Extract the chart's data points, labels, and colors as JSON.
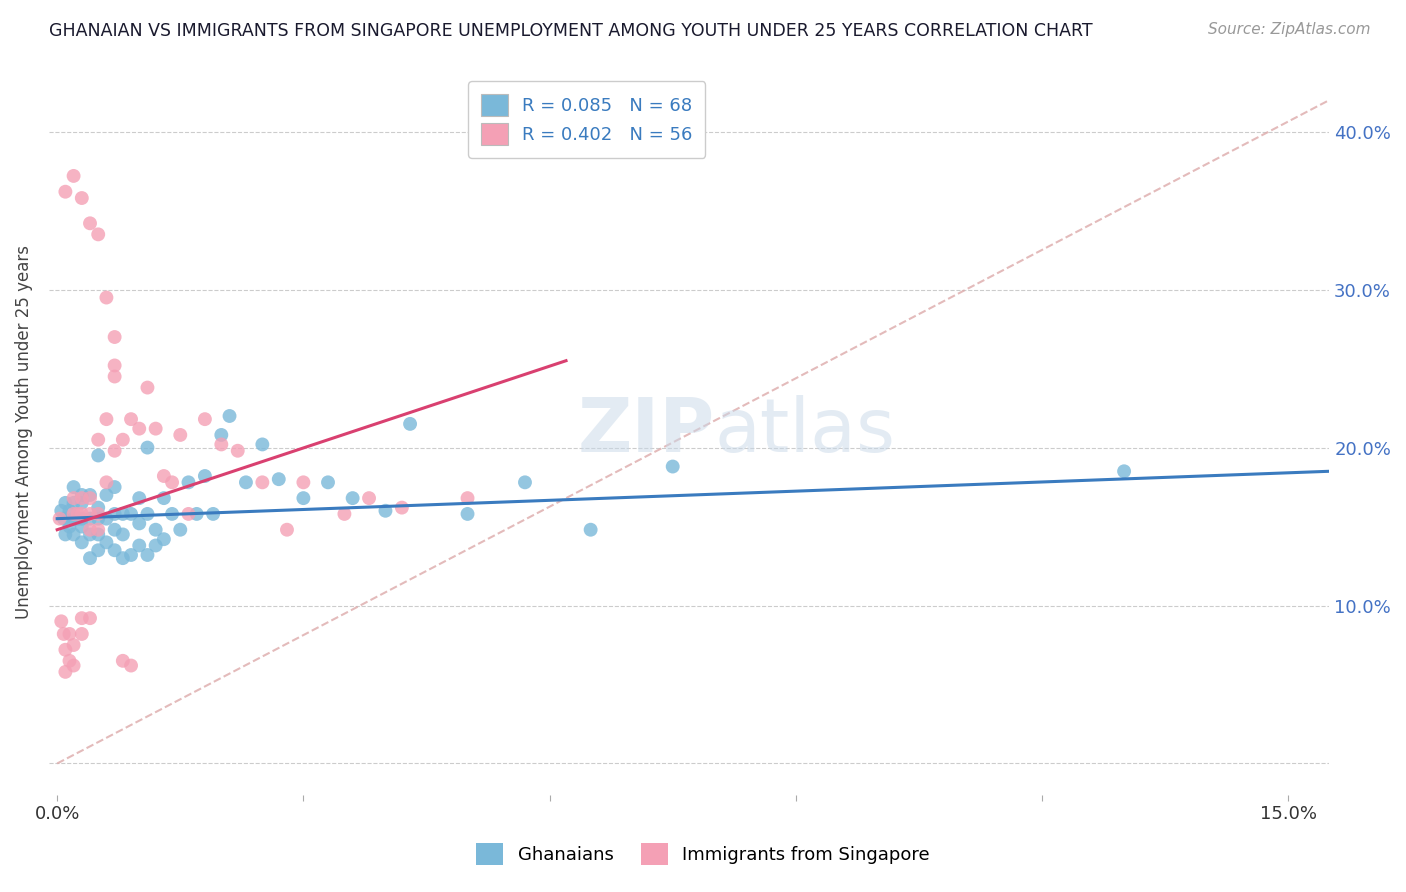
{
  "title": "GHANAIAN VS IMMIGRANTS FROM SINGAPORE UNEMPLOYMENT AMONG YOUTH UNDER 25 YEARS CORRELATION CHART",
  "source": "Source: ZipAtlas.com",
  "ylabel": "Unemployment Among Youth under 25 years",
  "y_ticks": [
    0.0,
    0.1,
    0.2,
    0.3,
    0.4
  ],
  "y_tick_labels": [
    "",
    "10.0%",
    "20.0%",
    "30.0%",
    "40.0%"
  ],
  "x_tick_positions": [
    0.0,
    0.03,
    0.06,
    0.09,
    0.12,
    0.15
  ],
  "x_tick_labels": [
    "0.0%",
    "",
    "",
    "",
    "",
    "15.0%"
  ],
  "xlim": [
    -0.001,
    0.155
  ],
  "ylim": [
    -0.02,
    0.44
  ],
  "watermark": "ZIPatlas",
  "legend_label_1": "R = 0.085   N = 68",
  "legend_label_2": "R = 0.402   N = 56",
  "legend_bottom_1": "Ghanaians",
  "legend_bottom_2": "Immigrants from Singapore",
  "color_blue": "#7ab8d9",
  "color_pink": "#f4a0b5",
  "line_color_blue": "#3a7bbf",
  "line_color_pink": "#d94070",
  "line_color_diag": "#ddaaaa",
  "blue_line_x": [
    0.0,
    0.155
  ],
  "blue_line_y": [
    0.155,
    0.185
  ],
  "pink_line_x": [
    0.0,
    0.062
  ],
  "pink_line_y": [
    0.148,
    0.255
  ],
  "diag_line_x": [
    0.0,
    0.155
  ],
  "diag_line_y": [
    0.0,
    0.42
  ],
  "ghanaian_x": [
    0.0005,
    0.0008,
    0.001,
    0.001,
    0.0015,
    0.0015,
    0.002,
    0.002,
    0.002,
    0.002,
    0.0025,
    0.003,
    0.003,
    0.003,
    0.003,
    0.003,
    0.004,
    0.004,
    0.004,
    0.004,
    0.005,
    0.005,
    0.005,
    0.005,
    0.005,
    0.006,
    0.006,
    0.006,
    0.007,
    0.007,
    0.007,
    0.007,
    0.008,
    0.008,
    0.008,
    0.009,
    0.009,
    0.01,
    0.01,
    0.01,
    0.011,
    0.011,
    0.011,
    0.012,
    0.012,
    0.013,
    0.013,
    0.014,
    0.015,
    0.016,
    0.017,
    0.018,
    0.019,
    0.02,
    0.021,
    0.023,
    0.025,
    0.027,
    0.03,
    0.033,
    0.036,
    0.04,
    0.043,
    0.05,
    0.057,
    0.065,
    0.075,
    0.13
  ],
  "ghanaian_y": [
    0.16,
    0.155,
    0.145,
    0.165,
    0.15,
    0.16,
    0.145,
    0.155,
    0.165,
    0.175,
    0.155,
    0.14,
    0.15,
    0.155,
    0.165,
    0.17,
    0.13,
    0.145,
    0.155,
    0.17,
    0.135,
    0.145,
    0.155,
    0.162,
    0.195,
    0.14,
    0.155,
    0.17,
    0.135,
    0.148,
    0.158,
    0.175,
    0.13,
    0.145,
    0.158,
    0.132,
    0.158,
    0.138,
    0.152,
    0.168,
    0.132,
    0.158,
    0.2,
    0.138,
    0.148,
    0.142,
    0.168,
    0.158,
    0.148,
    0.178,
    0.158,
    0.182,
    0.158,
    0.208,
    0.22,
    0.178,
    0.202,
    0.18,
    0.168,
    0.178,
    0.168,
    0.16,
    0.215,
    0.158,
    0.178,
    0.148,
    0.188,
    0.185
  ],
  "singapore_x": [
    0.0003,
    0.0005,
    0.0008,
    0.001,
    0.001,
    0.0015,
    0.0015,
    0.002,
    0.002,
    0.002,
    0.002,
    0.0025,
    0.003,
    0.003,
    0.003,
    0.003,
    0.004,
    0.004,
    0.004,
    0.004,
    0.005,
    0.005,
    0.005,
    0.006,
    0.006,
    0.007,
    0.007,
    0.008,
    0.009,
    0.01,
    0.011,
    0.012,
    0.013,
    0.014,
    0.015,
    0.016,
    0.018,
    0.02,
    0.022,
    0.025,
    0.028,
    0.03,
    0.035,
    0.038,
    0.042,
    0.05,
    0.001,
    0.002,
    0.003,
    0.004,
    0.005,
    0.006,
    0.007,
    0.007,
    0.008,
    0.009
  ],
  "singapore_y": [
    0.155,
    0.09,
    0.082,
    0.072,
    0.058,
    0.065,
    0.082,
    0.062,
    0.075,
    0.158,
    0.168,
    0.158,
    0.082,
    0.092,
    0.158,
    0.168,
    0.092,
    0.148,
    0.158,
    0.168,
    0.148,
    0.158,
    0.205,
    0.178,
    0.218,
    0.198,
    0.252,
    0.205,
    0.218,
    0.212,
    0.238,
    0.212,
    0.182,
    0.178,
    0.208,
    0.158,
    0.218,
    0.202,
    0.198,
    0.178,
    0.148,
    0.178,
    0.158,
    0.168,
    0.162,
    0.168,
    0.362,
    0.372,
    0.358,
    0.342,
    0.335,
    0.295,
    0.27,
    0.245,
    0.065,
    0.062
  ]
}
